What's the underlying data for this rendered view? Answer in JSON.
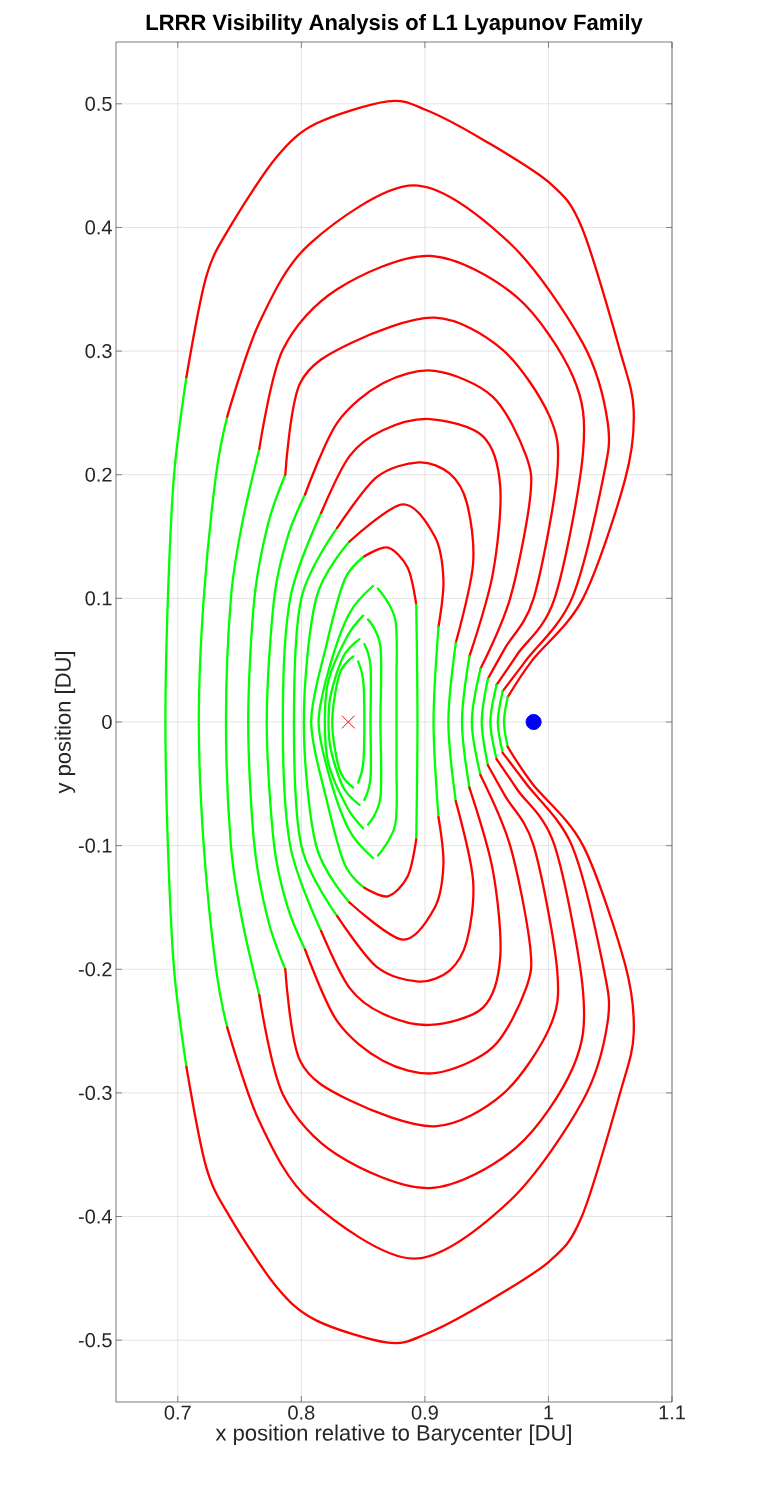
{
  "chart_data": {
    "type": "line",
    "title": "LRRR Visibility Analysis of L1 Lyapunov Family",
    "xlabel": "x position relative to Barycenter [DU]",
    "ylabel": "y position [DU]",
    "xlim": [
      0.65,
      1.1
    ],
    "ylim": [
      -0.55,
      0.55
    ],
    "xticks": [
      0.7,
      0.8,
      0.9,
      1,
      1.1
    ],
    "yticks": [
      -0.5,
      -0.4,
      -0.3,
      -0.2,
      -0.1,
      0,
      0.1,
      0.2,
      0.3,
      0.4,
      0.5
    ],
    "grid": true,
    "series": [
      {
        "color": "#00ff00",
        "x": [
          0.707,
          0.697,
          0.692,
          0.69,
          0.692,
          0.697,
          0.707
        ],
        "values": [
          -0.279,
          -0.2,
          -0.1,
          0,
          0.1,
          0.2,
          0.279
        ]
      },
      {
        "color": "#ff0000",
        "x": [
          0.707,
          0.723,
          0.742,
          0.78,
          0.812,
          0.87,
          0.901,
          0.947,
          1.001,
          1.027,
          1.058,
          1.069,
          1.062,
          1.028,
          0.987,
          0.967
        ],
        "values": [
          0.279,
          0.36,
          0.4,
          0.457,
          0.484,
          0.502,
          0.495,
          0.471,
          0.436,
          0.4,
          0.3,
          0.252,
          0.196,
          0.1,
          0.05,
          0.02
        ]
      },
      {
        "color": "#00ff00",
        "x": [
          0.967,
          0.964,
          0.967
        ],
        "values": [
          0.02,
          0,
          -0.02
        ]
      },
      {
        "color": "#ff0000",
        "x": [
          0.967,
          0.987,
          1.028,
          1.062,
          1.069,
          1.058,
          1.027,
          1.001,
          0.947,
          0.901,
          0.87,
          0.812,
          0.78,
          0.742,
          0.723,
          0.707
        ],
        "values": [
          -0.02,
          -0.05,
          -0.1,
          -0.196,
          -0.252,
          -0.3,
          -0.4,
          -0.436,
          -0.471,
          -0.495,
          -0.502,
          -0.484,
          -0.457,
          -0.4,
          -0.36,
          -0.279
        ]
      },
      {
        "color": "#00ff00",
        "x": [
          0.74,
          0.731,
          0.721,
          0.717,
          0.721,
          0.731,
          0.74
        ],
        "values": [
          -0.247,
          -0.2,
          -0.1,
          0,
          0.1,
          0.2,
          0.247
        ]
      },
      {
        "color": "#ff0000",
        "x": [
          0.74,
          0.766,
          0.807,
          0.891,
          0.969,
          1.028,
          1.048,
          1.044,
          1.019,
          0.982,
          0.963
        ],
        "values": [
          0.247,
          0.323,
          0.387,
          0.434,
          0.387,
          0.306,
          0.242,
          0.196,
          0.1,
          0.05,
          0.025
        ]
      },
      {
        "color": "#00ff00",
        "x": [
          0.963,
          0.959,
          0.963
        ],
        "values": [
          0.025,
          0,
          -0.025
        ]
      },
      {
        "color": "#ff0000",
        "x": [
          0.963,
          0.982,
          1.019,
          1.044,
          1.048,
          1.028,
          0.969,
          0.891,
          0.807,
          0.766,
          0.74
        ],
        "values": [
          -0.025,
          -0.05,
          -0.1,
          -0.196,
          -0.242,
          -0.306,
          -0.387,
          -0.434,
          -0.387,
          -0.323,
          -0.247
        ]
      },
      {
        "color": "#00ff00",
        "x": [
          0.766,
          0.752,
          0.743,
          0.739,
          0.743,
          0.752,
          0.766
        ],
        "values": [
          -0.221,
          -0.16,
          -0.1,
          0,
          0.1,
          0.16,
          0.221
        ]
      },
      {
        "color": "#ff0000",
        "x": [
          0.766,
          0.785,
          0.829,
          0.904,
          0.974,
          1.02,
          1.028,
          1.005,
          0.975,
          0.958
        ],
        "values": [
          0.221,
          0.301,
          0.35,
          0.377,
          0.344,
          0.279,
          0.218,
          0.1,
          0.055,
          0.03
        ]
      },
      {
        "color": "#00ff00",
        "x": [
          0.958,
          0.953,
          0.958
        ],
        "values": [
          0.03,
          0,
          -0.03
        ]
      },
      {
        "color": "#ff0000",
        "x": [
          0.958,
          0.975,
          1.005,
          1.028,
          1.02,
          0.974,
          0.904,
          0.829,
          0.785,
          0.766
        ],
        "values": [
          -0.03,
          -0.055,
          -0.1,
          -0.218,
          -0.279,
          -0.344,
          -0.377,
          -0.35,
          -0.301,
          -0.221
        ]
      },
      {
        "color": "#00ff00",
        "x": [
          0.787,
          0.773,
          0.762,
          0.757,
          0.762,
          0.773,
          0.787
        ],
        "values": [
          -0.2,
          -0.16,
          -0.1,
          0,
          0.1,
          0.16,
          0.2
        ]
      },
      {
        "color": "#ff0000",
        "x": [
          0.787,
          0.799,
          0.839,
          0.908,
          0.963,
          1.001,
          1.007,
          0.988,
          0.965,
          0.951
        ],
        "values": [
          0.2,
          0.274,
          0.306,
          0.327,
          0.301,
          0.247,
          0.2,
          0.1,
          0.06,
          0.035
        ]
      },
      {
        "color": "#00ff00",
        "x": [
          0.951,
          0.946,
          0.951
        ],
        "values": [
          0.035,
          0,
          -0.035
        ]
      },
      {
        "color": "#ff0000",
        "x": [
          0.951,
          0.965,
          0.988,
          1.007,
          1.001,
          0.963,
          0.908,
          0.839,
          0.799,
          0.787
        ],
        "values": [
          -0.035,
          -0.06,
          -0.1,
          -0.2,
          -0.247,
          -0.301,
          -0.327,
          -0.306,
          -0.274,
          -0.2
        ]
      },
      {
        "color": "#00ff00",
        "x": [
          0.803,
          0.789,
          0.778,
          0.772,
          0.778,
          0.789,
          0.803
        ],
        "values": [
          -0.184,
          -0.15,
          -0.1,
          0,
          0.1,
          0.15,
          0.184
        ]
      },
      {
        "color": "#ff0000",
        "x": [
          0.803,
          0.829,
          0.866,
          0.908,
          0.955,
          0.982,
          0.985,
          0.969,
          0.945
        ],
        "values": [
          0.184,
          0.242,
          0.274,
          0.284,
          0.263,
          0.215,
          0.18,
          0.1,
          0.043
        ]
      },
      {
        "color": "#00ff00",
        "x": [
          0.945,
          0.938,
          0.945
        ],
        "values": [
          0.043,
          0,
          -0.043
        ]
      },
      {
        "color": "#ff0000",
        "x": [
          0.945,
          0.969,
          0.985,
          0.982,
          0.955,
          0.908,
          0.866,
          0.829,
          0.803
        ],
        "values": [
          -0.043,
          -0.1,
          -0.18,
          -0.215,
          -0.263,
          -0.284,
          -0.274,
          -0.242,
          -0.184
        ]
      },
      {
        "color": "#00ff00",
        "x": [
          0.816,
          0.791,
          0.785,
          0.791,
          0.816
        ],
        "values": [
          -0.169,
          -0.1,
          0,
          0.1,
          0.169
        ]
      },
      {
        "color": "#ff0000",
        "x": [
          0.816,
          0.839,
          0.866,
          0.904,
          0.947,
          0.961,
          0.955,
          0.936
        ],
        "values": [
          0.169,
          0.215,
          0.236,
          0.245,
          0.231,
          0.19,
          0.12,
          0.053
        ]
      },
      {
        "color": "#00ff00",
        "x": [
          0.936,
          0.93,
          0.936
        ],
        "values": [
          0.053,
          0,
          -0.053
        ]
      },
      {
        "color": "#ff0000",
        "x": [
          0.936,
          0.955,
          0.961,
          0.947,
          0.904,
          0.866,
          0.839,
          0.816
        ],
        "values": [
          -0.053,
          -0.12,
          -0.19,
          -0.231,
          -0.245,
          -0.236,
          -0.215,
          -0.169
        ]
      },
      {
        "color": "#00ff00",
        "x": [
          0.829,
          0.8,
          0.794,
          0.8,
          0.829
        ],
        "values": [
          -0.157,
          -0.1,
          0,
          0.1,
          0.157
        ]
      },
      {
        "color": "#ff0000",
        "x": [
          0.829,
          0.861,
          0.895,
          0.92,
          0.934,
          0.939,
          0.925
        ],
        "values": [
          0.157,
          0.198,
          0.21,
          0.201,
          0.177,
          0.128,
          0.064
        ]
      },
      {
        "color": "#00ff00",
        "x": [
          0.925,
          0.919,
          0.925
        ],
        "values": [
          0.064,
          0,
          -0.064
        ]
      },
      {
        "color": "#ff0000",
        "x": [
          0.925,
          0.939,
          0.934,
          0.92,
          0.895,
          0.861,
          0.829
        ],
        "values": [
          -0.064,
          -0.128,
          -0.177,
          -0.201,
          -0.21,
          -0.198,
          -0.157
        ]
      },
      {
        "color": "#00ff00",
        "x": [
          0.839,
          0.812,
          0.802,
          0.812,
          0.839
        ],
        "values": [
          -0.146,
          -0.1,
          0,
          0.1,
          0.146
        ]
      },
      {
        "color": "#ff0000",
        "x": [
          0.839,
          0.882,
          0.908,
          0.915,
          0.911
        ],
        "values": [
          0.146,
          0.176,
          0.15,
          0.115,
          0.077
        ]
      },
      {
        "color": "#00ff00",
        "x": [
          0.911,
          0.907,
          0.911
        ],
        "values": [
          0.077,
          0,
          -0.077
        ]
      },
      {
        "color": "#ff0000",
        "x": [
          0.911,
          0.915,
          0.908,
          0.882,
          0.839
        ],
        "values": [
          -0.077,
          -0.115,
          -0.15,
          -0.176,
          -0.146
        ]
      },
      {
        "color": "#00ff00",
        "x": [
          0.851,
          0.835,
          0.82,
          0.808,
          0.82,
          0.835,
          0.851
        ],
        "values": [
          -0.134,
          -0.115,
          -0.061,
          0,
          0.061,
          0.115,
          0.134
        ]
      },
      {
        "color": "#ff0000",
        "x": [
          0.851,
          0.87,
          0.886,
          0.893
        ],
        "values": [
          0.134,
          0.141,
          0.125,
          0.095
        ]
      },
      {
        "color": "#00ff00",
        "x": [
          0.893,
          0.894,
          0.893
        ],
        "values": [
          0.095,
          0,
          -0.095
        ]
      },
      {
        "color": "#ff0000",
        "x": [
          0.893,
          0.886,
          0.87,
          0.851
        ],
        "values": [
          -0.095,
          -0.125,
          -0.141,
          -0.134
        ]
      },
      {
        "color": "#00ff00",
        "x": [
          0.858,
          0.839,
          0.823,
          0.814,
          0.823,
          0.839,
          0.858
        ],
        "values": [
          0.11,
          0.088,
          0.045,
          0,
          -0.045,
          -0.088,
          -0.11
        ]
      },
      {
        "color": "#00ff00",
        "x": [
          0.862,
          0.876,
          0.877,
          0.877,
          0.877,
          0.876,
          0.862
        ],
        "values": [
          -0.108,
          -0.083,
          -0.034,
          0,
          0.034,
          0.083,
          0.108
        ]
      },
      {
        "color": "#00ff00",
        "x": [
          0.85,
          0.837,
          0.822,
          0.819,
          0.822,
          0.837,
          0.85
        ],
        "values": [
          0.086,
          0.069,
          0.034,
          0,
          -0.034,
          -0.069,
          -0.086
        ]
      },
      {
        "color": "#00ff00",
        "x": [
          0.854,
          0.864,
          0.864,
          0.864,
          0.854
        ],
        "values": [
          -0.083,
          -0.061,
          0,
          0.061,
          0.083
        ]
      },
      {
        "color": "#00ff00",
        "x": [
          0.847,
          0.834,
          0.824,
          0.822,
          0.824,
          0.834,
          0.847
        ],
        "values": [
          0.067,
          0.053,
          0.023,
          0,
          -0.023,
          -0.053,
          -0.067
        ]
      },
      {
        "color": "#00ff00",
        "x": [
          0.851,
          0.856,
          0.856,
          0.856,
          0.851
        ],
        "values": [
          -0.063,
          -0.045,
          0,
          0.045,
          0.063
        ]
      },
      {
        "color": "#00ff00",
        "x": [
          0.842,
          0.831,
          0.825,
          0.831,
          0.842
        ],
        "values": [
          0.053,
          0.039,
          0,
          -0.039,
          -0.053
        ]
      },
      {
        "color": "#00ff00",
        "x": [
          0.846,
          0.85,
          0.851,
          0.85,
          0.846
        ],
        "values": [
          -0.049,
          -0.034,
          0,
          0.034,
          0.049
        ]
      },
      {
        "type": "scatter",
        "marker": "cross",
        "color": "#ff0000",
        "x": [
          0.838
        ],
        "values": [
          0
        ]
      },
      {
        "type": "scatter",
        "marker": "circle",
        "color": "#0000ff",
        "x": [
          0.988
        ],
        "values": [
          0
        ]
      }
    ]
  }
}
